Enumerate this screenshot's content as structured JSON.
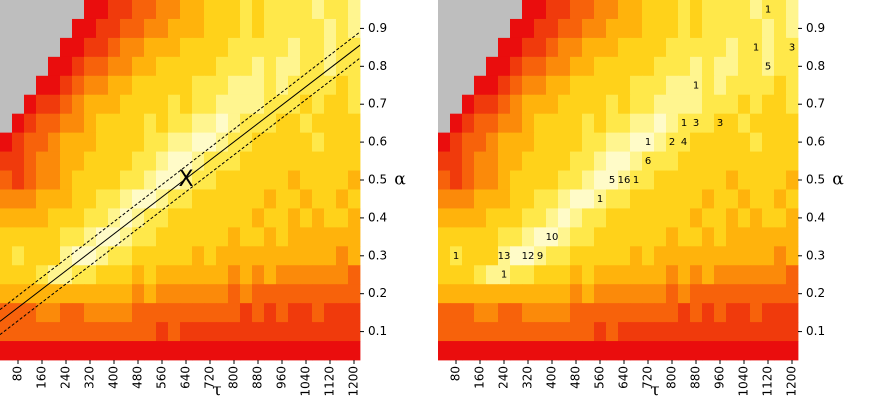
{
  "chart_data": {
    "type": "heatmap",
    "x_label": "τ",
    "y_label": "α",
    "xlim": [
      20,
      1220
    ],
    "ylim": [
      0.025,
      0.975
    ],
    "xticks": [
      80,
      160,
      240,
      320,
      400,
      480,
      560,
      640,
      720,
      800,
      880,
      960,
      1040,
      1120,
      1200
    ],
    "yticks": [
      0.1,
      0.2,
      0.3,
      0.4,
      0.5,
      0.6,
      0.7,
      0.8,
      0.9
    ],
    "palette": [
      "#ea0d0d",
      "#f03a0c",
      "#f7620b",
      "#fb8a0a",
      "#ffb30c",
      "#ffd21a",
      "#ffe84a",
      "#fff58f",
      "#fffbc8"
    ],
    "na_color": "#bebebe",
    "z": [
      [
        null,
        null,
        null,
        null,
        null,
        null,
        null,
        0,
        0,
        1,
        1,
        2,
        2,
        3,
        3,
        4,
        4,
        5,
        5,
        5,
        6,
        5,
        6,
        6,
        6,
        6,
        7,
        6,
        6,
        7
      ],
      [
        null,
        null,
        null,
        null,
        null,
        null,
        0,
        0,
        1,
        1,
        2,
        2,
        3,
        3,
        4,
        4,
        4,
        5,
        5,
        5,
        6,
        5,
        6,
        6,
        6,
        6,
        6,
        7,
        6,
        7
      ],
      [
        null,
        null,
        null,
        null,
        null,
        0,
        0,
        1,
        1,
        2,
        3,
        3,
        4,
        4,
        4,
        5,
        5,
        5,
        5,
        6,
        6,
        6,
        6,
        6,
        7,
        6,
        6,
        7,
        6,
        6
      ],
      [
        null,
        null,
        null,
        null,
        0,
        0,
        1,
        2,
        2,
        3,
        3,
        4,
        4,
        5,
        5,
        5,
        5,
        5,
        6,
        6,
        6,
        7,
        6,
        7,
        7,
        6,
        6,
        7,
        6,
        6
      ],
      [
        null,
        null,
        null,
        0,
        0,
        1,
        2,
        3,
        3,
        4,
        4,
        5,
        5,
        5,
        5,
        5,
        6,
        6,
        6,
        7,
        7,
        7,
        6,
        7,
        6,
        6,
        6,
        6,
        5,
        6
      ],
      [
        null,
        null,
        0,
        1,
        1,
        2,
        3,
        4,
        4,
        4,
        5,
        5,
        5,
        5,
        6,
        5,
        6,
        6,
        7,
        7,
        7,
        7,
        6,
        6,
        6,
        5,
        6,
        5,
        5,
        6
      ],
      [
        null,
        0,
        1,
        2,
        2,
        3,
        3,
        4,
        5,
        5,
        5,
        5,
        6,
        5,
        6,
        6,
        7,
        7,
        8,
        7,
        6,
        6,
        6,
        5,
        5,
        6,
        5,
        5,
        5,
        5
      ],
      [
        0,
        1,
        2,
        2,
        3,
        4,
        4,
        4,
        5,
        5,
        5,
        5,
        6,
        6,
        7,
        7,
        8,
        8,
        7,
        6,
        6,
        5,
        5,
        5,
        5,
        5,
        6,
        5,
        5,
        5
      ],
      [
        1,
        1,
        2,
        3,
        3,
        4,
        4,
        5,
        5,
        5,
        5,
        6,
        6,
        7,
        8,
        8,
        7,
        6,
        6,
        6,
        5,
        5,
        5,
        5,
        5,
        5,
        5,
        5,
        5,
        5
      ],
      [
        2,
        1,
        2,
        3,
        3,
        4,
        5,
        5,
        5,
        5,
        6,
        6,
        7,
        8,
        8,
        7,
        6,
        6,
        5,
        5,
        5,
        5,
        5,
        5,
        4,
        5,
        5,
        5,
        5,
        4
      ],
      [
        3,
        3,
        3,
        4,
        4,
        4,
        5,
        5,
        6,
        6,
        7,
        8,
        8,
        7,
        6,
        6,
        5,
        5,
        5,
        5,
        5,
        5,
        4,
        5,
        5,
        4,
        5,
        5,
        4,
        5
      ],
      [
        4,
        4,
        4,
        4,
        5,
        5,
        5,
        6,
        6,
        7,
        8,
        7,
        6,
        6,
        5,
        5,
        5,
        5,
        5,
        5,
        5,
        4,
        5,
        5,
        4,
        5,
        4,
        5,
        5,
        4
      ],
      [
        5,
        5,
        5,
        5,
        5,
        6,
        6,
        7,
        8,
        8,
        7,
        6,
        6,
        5,
        5,
        5,
        5,
        5,
        5,
        4,
        5,
        5,
        4,
        5,
        4,
        4,
        4,
        4,
        4,
        4
      ],
      [
        5,
        6,
        5,
        5,
        5,
        7,
        8,
        8,
        7,
        6,
        6,
        5,
        5,
        5,
        5,
        5,
        4,
        5,
        4,
        4,
        4,
        4,
        4,
        4,
        4,
        4,
        4,
        4,
        3,
        4
      ],
      [
        5,
        5,
        5,
        6,
        7,
        7,
        6,
        6,
        5,
        5,
        5,
        4,
        5,
        4,
        4,
        4,
        4,
        4,
        4,
        3,
        4,
        3,
        4,
        3,
        3,
        3,
        3,
        3,
        3,
        2
      ],
      [
        4,
        4,
        4,
        4,
        4,
        4,
        4,
        4,
        4,
        4,
        4,
        3,
        4,
        3,
        3,
        3,
        3,
        3,
        3,
        2,
        3,
        2,
        2,
        2,
        2,
        2,
        2,
        2,
        2,
        2
      ],
      [
        2,
        2,
        2,
        3,
        3,
        2,
        2,
        3,
        3,
        3,
        3,
        2,
        2,
        2,
        2,
        2,
        2,
        2,
        2,
        2,
        1,
        2,
        1,
        2,
        1,
        1,
        2,
        1,
        1,
        1
      ],
      [
        2,
        2,
        2,
        2,
        2,
        2,
        2,
        2,
        2,
        2,
        2,
        2,
        2,
        1,
        2,
        1,
        1,
        1,
        1,
        1,
        1,
        1,
        1,
        1,
        1,
        1,
        1,
        1,
        1,
        1
      ],
      [
        0,
        0,
        0,
        0,
        0,
        0,
        0,
        0,
        0,
        0,
        0,
        0,
        0,
        0,
        0,
        0,
        0,
        0,
        0,
        0,
        0,
        0,
        0,
        0,
        0,
        0,
        0,
        0,
        0,
        0
      ]
    ],
    "fit_line": {
      "x": [
        20,
        1227
      ],
      "y": [
        0.127,
        0.86
      ]
    },
    "fit_band_upper": {
      "x": [
        20,
        1227
      ],
      "y": [
        0.158,
        0.895
      ]
    },
    "fit_band_lower": {
      "x": [
        20,
        1227
      ],
      "y": [
        0.092,
        0.826
      ]
    },
    "marker": {
      "label": "X",
      "x": 640,
      "y": 0.5
    },
    "annotations": [
      {
        "x": 1120,
        "y": 0.95,
        "n": 1
      },
      {
        "x": 1080,
        "y": 0.85,
        "n": 1
      },
      {
        "x": 1200,
        "y": 0.85,
        "n": 3
      },
      {
        "x": 1120,
        "y": 0.8,
        "n": 5
      },
      {
        "x": 880,
        "y": 0.75,
        "n": 1
      },
      {
        "x": 840,
        "y": 0.65,
        "n": 1
      },
      {
        "x": 880,
        "y": 0.65,
        "n": 3
      },
      {
        "x": 960,
        "y": 0.65,
        "n": 3
      },
      {
        "x": 720,
        "y": 0.6,
        "n": 1
      },
      {
        "x": 800,
        "y": 0.6,
        "n": 2
      },
      {
        "x": 840,
        "y": 0.6,
        "n": 4
      },
      {
        "x": 720,
        "y": 0.55,
        "n": 6
      },
      {
        "x": 600,
        "y": 0.5,
        "n": 5
      },
      {
        "x": 640,
        "y": 0.5,
        "n": 16
      },
      {
        "x": 680,
        "y": 0.5,
        "n": 1
      },
      {
        "x": 560,
        "y": 0.45,
        "n": 1
      },
      {
        "x": 400,
        "y": 0.35,
        "n": 10
      },
      {
        "x": 80,
        "y": 0.3,
        "n": 1
      },
      {
        "x": 240,
        "y": 0.3,
        "n": 13
      },
      {
        "x": 320,
        "y": 0.3,
        "n": 12
      },
      {
        "x": 360,
        "y": 0.3,
        "n": 9
      },
      {
        "x": 240,
        "y": 0.25,
        "n": 1
      }
    ]
  }
}
